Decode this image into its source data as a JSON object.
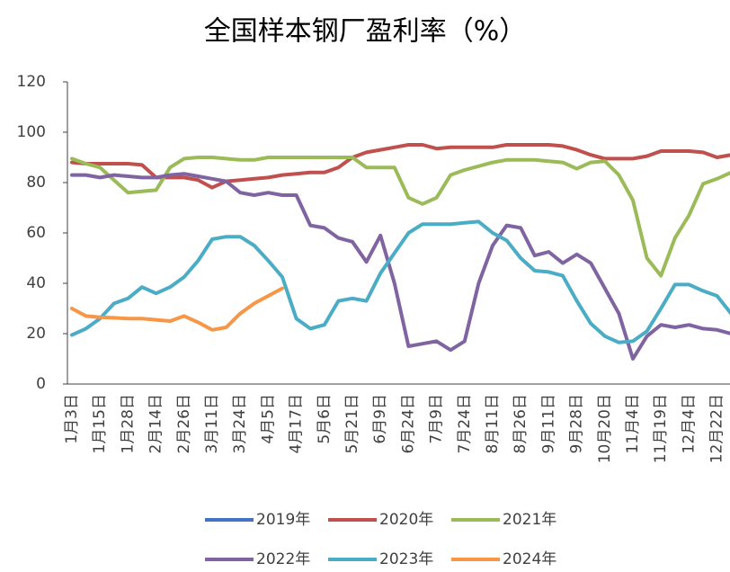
{
  "chart_data": {
    "type": "line",
    "title": "全国样本钢厂盈利率（%）",
    "categories": [
      "1月3日",
      null,
      "1月15日",
      null,
      "1月28日",
      null,
      "2月14日",
      null,
      "2月26日",
      null,
      "3月11日",
      null,
      "3月24日",
      null,
      "4月5日",
      null,
      "4月17日",
      null,
      "5月6日",
      null,
      "5月21日",
      null,
      "6月9日",
      null,
      "6月24日",
      null,
      "7月9日",
      null,
      "7月24日",
      null,
      "8月11日",
      null,
      "8月26日",
      null,
      "9月11日",
      null,
      "9月28日",
      null,
      "10月20日",
      null,
      "11月4日",
      null,
      "11月19日",
      null,
      "12月4日",
      null,
      "12月22日",
      null
    ],
    "ylim": [
      0,
      120
    ],
    "yticks": [
      0,
      20,
      40,
      60,
      80,
      100,
      120
    ],
    "grid": false,
    "series": [
      {
        "name": "2019年",
        "color": "#4472c4",
        "values": [
          null,
          null,
          null,
          null,
          null,
          null,
          null,
          null,
          null,
          null,
          null,
          null,
          null,
          null,
          null,
          null,
          null,
          null,
          null,
          null,
          null,
          null,
          null,
          null,
          null,
          null,
          null,
          null,
          null,
          null,
          null,
          null,
          null,
          null,
          null,
          null,
          null,
          null,
          null,
          null,
          null,
          null,
          null,
          null,
          null,
          null,
          null,
          null
        ]
      },
      {
        "name": "2020年",
        "color": "#c0504d",
        "values": [
          88,
          87.5,
          87.5,
          87.5,
          87.5,
          87,
          82,
          82,
          82,
          81,
          78,
          80.5,
          81,
          81.5,
          82,
          83,
          83.5,
          84,
          84,
          86,
          90,
          92,
          93,
          94,
          95,
          95,
          93.5,
          94,
          94,
          94,
          94,
          95,
          95,
          95,
          95,
          94.5,
          93,
          91,
          89.5,
          89.5,
          89.5,
          90.5,
          92.5,
          92.5,
          92.5,
          92,
          90,
          91
        ]
      },
      {
        "name": "2021年",
        "color": "#9bbb59",
        "values": [
          89.5,
          87.5,
          86,
          81,
          76,
          76.5,
          77,
          86,
          89.5,
          90,
          90,
          89.5,
          89,
          89,
          90,
          90,
          90,
          90,
          90,
          90,
          90,
          86,
          86,
          86,
          74,
          71.5,
          74,
          83,
          85,
          86.5,
          88,
          89,
          89,
          89,
          88.5,
          88,
          85.5,
          88,
          88.5,
          83,
          73,
          50,
          43,
          58,
          67,
          79.5,
          81.5,
          84
        ]
      },
      {
        "name": "2022年",
        "color": "#8064a2",
        "values": [
          83,
          83,
          82,
          83,
          82.5,
          82,
          82,
          83,
          83.5,
          82.5,
          81.5,
          80.5,
          76,
          75,
          76,
          75,
          75,
          63,
          62,
          58,
          56.5,
          48.5,
          59,
          40,
          15,
          16,
          17,
          13.5,
          17,
          40,
          55,
          63,
          62,
          51,
          52.5,
          48,
          51.5,
          48,
          38,
          28,
          10,
          19,
          23.5,
          22.5,
          23.5,
          22,
          21.5,
          20
        ]
      },
      {
        "name": "2023年",
        "color": "#4bacc6",
        "values": [
          19.5,
          22,
          26,
          32,
          34,
          38.5,
          36,
          38.5,
          42.5,
          49,
          57.5,
          58.5,
          58.5,
          55,
          49,
          42.5,
          26,
          22,
          23.5,
          33,
          34,
          33,
          44,
          52,
          60,
          63.5,
          63.5,
          63.5,
          64,
          64.5,
          60,
          57,
          50,
          45,
          44.5,
          43,
          33,
          24,
          19,
          16.5,
          17,
          21,
          30,
          39.5,
          39.5,
          37,
          35,
          28
        ]
      },
      {
        "name": "2024年",
        "color": "#f79646",
        "values": [
          30,
          27,
          26.5,
          26.3,
          26,
          26,
          25.5,
          25,
          27,
          24.5,
          21.5,
          22.5,
          28,
          32,
          35,
          38,
          null,
          null,
          null,
          null,
          null,
          null,
          null,
          null,
          null,
          null,
          null,
          null,
          null,
          null,
          null,
          null,
          null,
          null,
          null,
          null,
          null,
          null,
          null,
          null,
          null,
          null,
          null,
          null,
          null,
          null,
          null,
          null
        ]
      }
    ]
  }
}
